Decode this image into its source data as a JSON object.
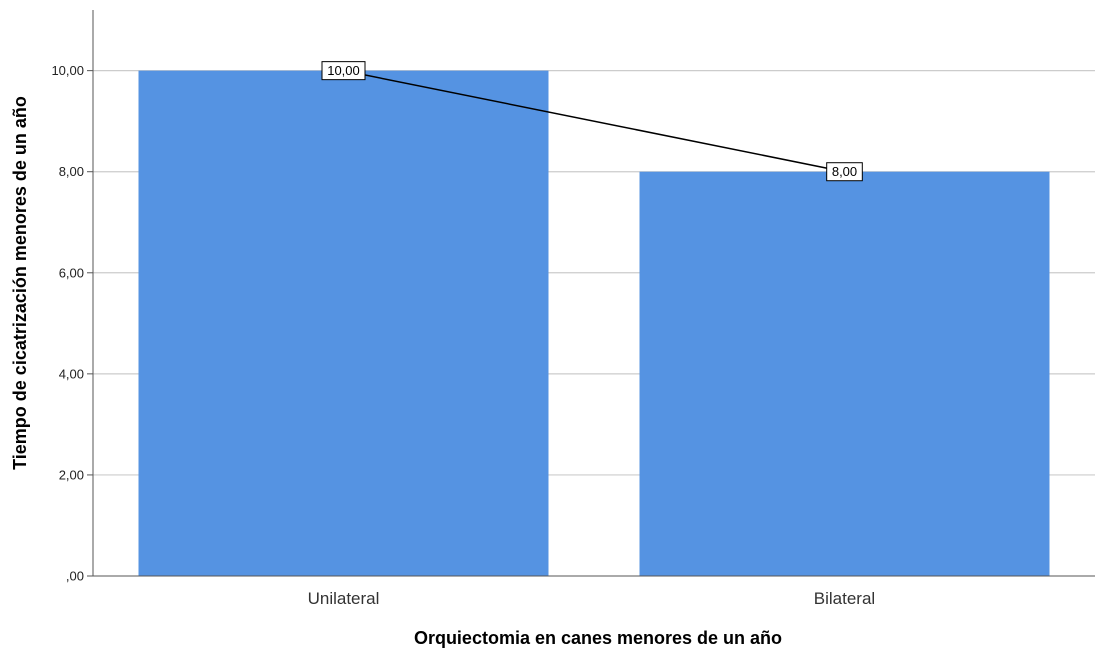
{
  "chart_data": {
    "type": "bar",
    "categories": [
      "Unilateral",
      "Bilateral"
    ],
    "values": [
      10.0,
      8.0
    ],
    "data_labels": [
      "10,00",
      "8,00"
    ],
    "line_overlay": true,
    "xlabel": "Orquiectomia en canes menores de un año",
    "ylabel": "Tiempo de cicatrización menores de un año",
    "ylim": [
      0,
      11.2
    ],
    "yticks": [
      0,
      2,
      4,
      6,
      8,
      10
    ],
    "ytick_labels": [
      ",00",
      "2,00",
      "4,00",
      "6,00",
      "8,00",
      "10,00"
    ],
    "grid": true,
    "bar_color": "#5593e2",
    "line_color": "#000000",
    "grid_color": "#cccccc"
  }
}
